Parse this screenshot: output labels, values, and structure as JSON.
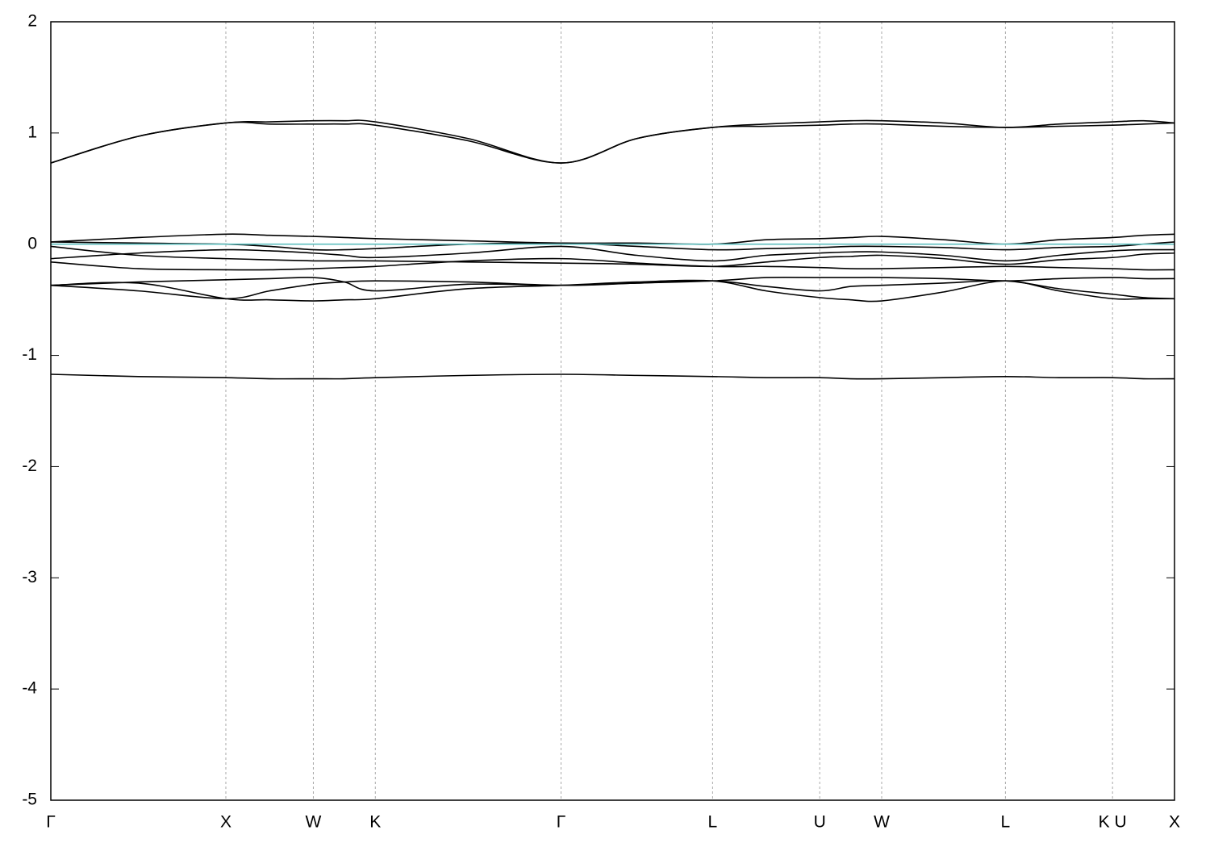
{
  "chart_data": {
    "type": "line",
    "x": [
      0,
      0.5,
      1.0,
      1.25,
      1.5,
      1.677,
      1.854,
      2.384,
      2.915,
      3.348,
      3.781,
      4.087,
      4.393,
      4.57,
      4.747,
      5.1,
      5.454,
      5.76,
      6.066,
      6.243,
      6.42
    ],
    "xlim": [
      0,
      6.42
    ],
    "xticks": [
      {
        "value": 0,
        "label": "Γ"
      },
      {
        "value": 1.0,
        "label": "X"
      },
      {
        "value": 1.5,
        "label": "W"
      },
      {
        "value": 1.854,
        "label": "K"
      },
      {
        "value": 2.915,
        "label": "Γ"
      },
      {
        "value": 3.781,
        "label": "L"
      },
      {
        "value": 4.393,
        "label": "U"
      },
      {
        "value": 4.747,
        "label": "W"
      },
      {
        "value": 5.454,
        "label": "L"
      },
      {
        "value": 6.066,
        "label": "K U"
      },
      {
        "value": 6.42,
        "label": "X"
      }
    ],
    "ylim": [
      -5,
      2
    ],
    "yticks": [
      -5,
      -4,
      -3,
      -2,
      -1,
      0,
      1,
      2
    ],
    "grid": "x",
    "series": [
      {
        "color": "#000000",
        "values": [
          0.73,
          0.97,
          1.09,
          1.1,
          1.11,
          1.11,
          1.1,
          0.95,
          0.73,
          0.95,
          1.05,
          1.08,
          1.1,
          1.11,
          1.11,
          1.09,
          1.05,
          1.08,
          1.1,
          1.11,
          1.09
        ]
      },
      {
        "color": "#000000",
        "values": [
          0.73,
          0.97,
          1.09,
          1.08,
          1.08,
          1.08,
          1.07,
          0.93,
          0.73,
          0.95,
          1.05,
          1.06,
          1.07,
          1.08,
          1.08,
          1.06,
          1.05,
          1.06,
          1.07,
          1.08,
          1.09
        ]
      },
      {
        "color": "#000000",
        "values": [
          0.02,
          0.06,
          0.09,
          0.08,
          0.07,
          0.06,
          0.05,
          0.03,
          0.01,
          0.01,
          0.0,
          0.04,
          0.05,
          0.06,
          0.07,
          0.04,
          0.0,
          0.04,
          0.06,
          0.08,
          0.09
        ]
      },
      {
        "color": "#000000",
        "values": [
          0.02,
          0.01,
          0.0,
          -0.02,
          -0.05,
          -0.05,
          -0.04,
          0.0,
          0.01,
          -0.02,
          -0.05,
          -0.04,
          -0.03,
          -0.02,
          -0.02,
          -0.03,
          -0.05,
          -0.03,
          -0.02,
          0.0,
          0.02
        ]
      },
      {
        "color": "#000000",
        "values": [
          -0.13,
          -0.08,
          -0.05,
          -0.06,
          -0.08,
          -0.1,
          -0.12,
          -0.08,
          -0.02,
          -0.1,
          -0.15,
          -0.1,
          -0.08,
          -0.07,
          -0.07,
          -0.1,
          -0.15,
          -0.1,
          -0.06,
          -0.05,
          -0.05
        ]
      },
      {
        "color": "#000000",
        "values": [
          -0.02,
          -0.1,
          -0.13,
          -0.14,
          -0.15,
          -0.15,
          -0.15,
          -0.16,
          -0.17,
          -0.18,
          -0.2,
          -0.16,
          -0.12,
          -0.11,
          -0.1,
          -0.13,
          -0.18,
          -0.14,
          -0.12,
          -0.09,
          -0.08
        ]
      },
      {
        "color": "#000000",
        "values": [
          -0.16,
          -0.22,
          -0.23,
          -0.23,
          -0.22,
          -0.21,
          -0.2,
          -0.15,
          -0.13,
          -0.17,
          -0.2,
          -0.2,
          -0.21,
          -0.22,
          -0.22,
          -0.21,
          -0.2,
          -0.21,
          -0.22,
          -0.23,
          -0.23
        ]
      },
      {
        "color": "#000000",
        "values": [
          -0.37,
          -0.42,
          -0.49,
          -0.42,
          -0.36,
          -0.34,
          -0.33,
          -0.34,
          -0.37,
          -0.35,
          -0.33,
          -0.3,
          -0.3,
          -0.3,
          -0.3,
          -0.31,
          -0.33,
          -0.31,
          -0.3,
          -0.31,
          -0.31
        ]
      },
      {
        "color": "#000000",
        "values": [
          -0.37,
          -0.35,
          -0.49,
          -0.5,
          -0.51,
          -0.5,
          -0.49,
          -0.4,
          -0.37,
          -0.34,
          -0.33,
          -0.42,
          -0.48,
          -0.5,
          -0.51,
          -0.43,
          -0.33,
          -0.42,
          -0.49,
          -0.49,
          -0.49
        ]
      },
      {
        "color": "#000000",
        "values": [
          -0.37,
          -0.34,
          -0.32,
          -0.31,
          -0.3,
          -0.34,
          -0.42,
          -0.36,
          -0.37,
          -0.35,
          -0.33,
          -0.38,
          -0.42,
          -0.38,
          -0.37,
          -0.35,
          -0.33,
          -0.4,
          -0.45,
          -0.48,
          -0.49
        ]
      },
      {
        "color": "#000000",
        "values": [
          -1.17,
          -1.19,
          -1.2,
          -1.21,
          -1.21,
          -1.21,
          -1.2,
          -1.18,
          -1.17,
          -1.18,
          -1.19,
          -1.2,
          -1.2,
          -1.21,
          -1.21,
          -1.2,
          -1.19,
          -1.2,
          -1.2,
          -1.21,
          -1.21
        ]
      },
      {
        "color": "#5fbfbf",
        "values": [
          0,
          0,
          0,
          0,
          0,
          0,
          0,
          0,
          0,
          0,
          0,
          0,
          0,
          0,
          0,
          0,
          0,
          0,
          0,
          0,
          0
        ]
      }
    ]
  }
}
